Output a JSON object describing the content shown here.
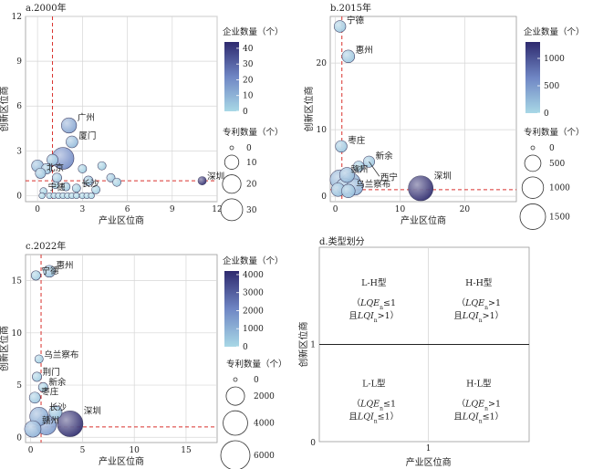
{
  "chart_data": [
    {
      "id": "a",
      "type": "scatter",
      "title": "a.2000年",
      "xlabel": "产业区位商",
      "ylabel": "创新区位商",
      "xlim": [
        -0.8,
        12
      ],
      "ylim": [
        -0.4,
        12
      ],
      "xticks": [
        0,
        3,
        6,
        9,
        12
      ],
      "yticks": [
        0,
        3,
        6,
        9,
        12
      ],
      "grid": true,
      "ref_x": 1,
      "ref_y": 1,
      "size_legend": {
        "title": "专利数量（个）",
        "values": [
          0,
          10,
          20,
          30
        ]
      },
      "color_legend": {
        "title": "企业数量（个）",
        "ticks": [
          0,
          10,
          20,
          30,
          40
        ],
        "max": 44
      },
      "points": [
        {
          "x": 1.7,
          "y": 2.5,
          "size": 30,
          "color": 20,
          "label": ""
        },
        {
          "x": 2.1,
          "y": 4.7,
          "size": 12,
          "color": 14,
          "label": "广州"
        },
        {
          "x": 2.3,
          "y": 3.6,
          "size": 6,
          "color": 8,
          "label": "厦门"
        },
        {
          "x": 1.0,
          "y": 2.4,
          "size": 5,
          "color": 6,
          "label": ""
        },
        {
          "x": 0.6,
          "y": 1.8,
          "size": 4,
          "color": 5,
          "label": ""
        },
        {
          "x": 0.0,
          "y": 2.0,
          "size": 6,
          "color": 8,
          "label": ""
        },
        {
          "x": 0.2,
          "y": 1.5,
          "size": 4,
          "color": 5,
          "label": "北京"
        },
        {
          "x": 1.3,
          "y": 1.2,
          "size": 3,
          "color": 4,
          "label": ""
        },
        {
          "x": 3.4,
          "y": 1.0,
          "size": 3,
          "color": 5,
          "label": ""
        },
        {
          "x": 3.9,
          "y": 0.4,
          "size": 2,
          "color": 3,
          "label": ""
        },
        {
          "x": 4.9,
          "y": 1.2,
          "size": 2,
          "color": 4,
          "label": ""
        },
        {
          "x": 5.3,
          "y": 0.9,
          "size": 2,
          "color": 3,
          "label": ""
        },
        {
          "x": 3.0,
          "y": 1.8,
          "size": 2,
          "color": 3,
          "label": ""
        },
        {
          "x": 4.3,
          "y": 2.0,
          "size": 2,
          "color": 3,
          "label": ""
        },
        {
          "x": 1.9,
          "y": 0.6,
          "size": 2,
          "color": 4,
          "label": ""
        },
        {
          "x": 2.6,
          "y": 0.5,
          "size": 2,
          "color": 3,
          "label": "长沙"
        },
        {
          "x": 1.2,
          "y": 0.7,
          "size": 1,
          "color": 2,
          "label": ""
        },
        {
          "x": 0.4,
          "y": 0.3,
          "size": 1,
          "color": 2,
          "label": "宁德"
        },
        {
          "x": 0.8,
          "y": 0.0,
          "size": 0.5,
          "color": 1,
          "label": ""
        },
        {
          "x": 1.1,
          "y": 0.0,
          "size": 0.5,
          "color": 1,
          "label": ""
        },
        {
          "x": 1.4,
          "y": 0.0,
          "size": 0.5,
          "color": 1,
          "label": ""
        },
        {
          "x": 1.7,
          "y": 0.0,
          "size": 0.5,
          "color": 1,
          "label": ""
        },
        {
          "x": 2.0,
          "y": 0.0,
          "size": 0.5,
          "color": 1,
          "label": ""
        },
        {
          "x": 2.3,
          "y": 0.0,
          "size": 0.5,
          "color": 1,
          "label": ""
        },
        {
          "x": 2.6,
          "y": 0.0,
          "size": 0.5,
          "color": 1,
          "label": ""
        },
        {
          "x": 3.0,
          "y": 0.0,
          "size": 0.5,
          "color": 1,
          "label": ""
        },
        {
          "x": 3.3,
          "y": 0.0,
          "size": 0.5,
          "color": 1,
          "label": ""
        },
        {
          "x": 3.6,
          "y": 0.0,
          "size": 0.5,
          "color": 1,
          "label": ""
        },
        {
          "x": 0.3,
          "y": 0.0,
          "size": 0.5,
          "color": 1,
          "label": ""
        },
        {
          "x": 11.0,
          "y": 1.0,
          "size": 2,
          "color": 44,
          "label": "深圳"
        }
      ]
    },
    {
      "id": "b",
      "type": "scatter",
      "title": "b.2015年",
      "xlabel": "产业区位商",
      "ylabel": "创新区位商",
      "xlim": [
        -0.8,
        28
      ],
      "ylim": [
        -0.8,
        27
      ],
      "xticks": [
        0,
        10,
        20
      ],
      "yticks": [
        0,
        10,
        20
      ],
      "grid": true,
      "ref_x": 1,
      "ref_y": 1,
      "size_legend": {
        "title": "专利数量（个）",
        "values": [
          0,
          500,
          1000,
          1500
        ]
      },
      "color_legend": {
        "title": "企业数量（个）",
        "ticks": [
          0,
          500,
          1000
        ],
        "max": 1300
      },
      "points": [
        {
          "x": 0.7,
          "y": 25.5,
          "size": 200,
          "color": 120,
          "label": "宁德"
        },
        {
          "x": 2.0,
          "y": 21.0,
          "size": 250,
          "color": 150,
          "label": "惠州"
        },
        {
          "x": 0.9,
          "y": 7.5,
          "size": 200,
          "color": 150,
          "label": "枣庄"
        },
        {
          "x": 3.6,
          "y": 4.5,
          "size": 150,
          "color": 100,
          "label": ""
        },
        {
          "x": 5.2,
          "y": 5.2,
          "size": 180,
          "color": 150,
          "label": "新余"
        },
        {
          "x": 1.8,
          "y": 3.2,
          "size": 400,
          "color": 250,
          "label": ""
        },
        {
          "x": 0.7,
          "y": 2.5,
          "size": 800,
          "color": 300,
          "label": "赣州"
        },
        {
          "x": 2.4,
          "y": 2.1,
          "size": 700,
          "color": 300,
          "label": ""
        },
        {
          "x": 1.4,
          "y": 1.5,
          "size": 500,
          "color": 250,
          "label": ""
        },
        {
          "x": 3.0,
          "y": 1.4,
          "size": 500,
          "color": 300,
          "label": ""
        },
        {
          "x": 0.4,
          "y": 1.0,
          "size": 300,
          "color": 200,
          "label": ""
        },
        {
          "x": 2.0,
          "y": 0.8,
          "size": 300,
          "color": 200,
          "label": "乌兰察布"
        },
        {
          "x": 13.2,
          "y": 1.2,
          "size": 1400,
          "color": 1300,
          "label": "深圳"
        }
      ],
      "annotations": [
        {
          "text": "西宁",
          "from": [
            5.2,
            5.2
          ],
          "to": [
            6.8,
            3.0
          ]
        },
        {
          "text": "",
          "from": [
            3.6,
            4.5
          ],
          "to": [
            4.8,
            4.6
          ]
        }
      ]
    },
    {
      "id": "c",
      "type": "scatter",
      "title": "c.2022年",
      "xlabel": "产业区位商",
      "ylabel": "创新区位商",
      "xlim": [
        -0.5,
        18
      ],
      "ylim": [
        -0.5,
        17.5
      ],
      "xticks": [
        0,
        5,
        10,
        15
      ],
      "yticks": [
        0,
        5,
        10,
        15
      ],
      "grid": true,
      "ref_x": 1,
      "ref_y": 1,
      "size_legend": {
        "title": "专利数量（个）",
        "values": [
          0,
          2000,
          4000,
          6000
        ]
      },
      "color_legend": {
        "title": "企业数量（个）",
        "ticks": [
          0,
          1000,
          2000,
          3000,
          4000
        ],
        "max": 4200
      },
      "points": [
        {
          "x": 1.8,
          "y": 15.9,
          "size": 600,
          "color": 500,
          "label": "惠州"
        },
        {
          "x": 0.5,
          "y": 15.5,
          "size": 300,
          "color": 300,
          "label": "宁德"
        },
        {
          "x": 0.8,
          "y": 7.5,
          "size": 200,
          "color": 250,
          "label": "乌兰察布"
        },
        {
          "x": 0.6,
          "y": 5.8,
          "size": 300,
          "color": 300,
          "label": "荆门"
        },
        {
          "x": 1.2,
          "y": 4.8,
          "size": 300,
          "color": 300,
          "label": "新余"
        },
        {
          "x": 0.4,
          "y": 3.8,
          "size": 500,
          "color": 400,
          "label": "枣庄"
        },
        {
          "x": 0.8,
          "y": 2.0,
          "size": 2000,
          "color": 1200,
          "label": "长沙"
        },
        {
          "x": 1.5,
          "y": 1.2,
          "size": 2500,
          "color": 1500,
          "label": ""
        },
        {
          "x": 0.2,
          "y": 0.8,
          "size": 1500,
          "color": 1000,
          "label": "赣州"
        },
        {
          "x": 2.4,
          "y": 2.4,
          "size": 800,
          "color": 600,
          "label": ""
        },
        {
          "x": 3.8,
          "y": 1.3,
          "size": 4500,
          "color": 4200,
          "label": "深圳"
        }
      ]
    },
    {
      "id": "d",
      "type": "quadrant",
      "title": "d.类型划分",
      "xlabel": "产业区位商",
      "ylabel": "创新区位商",
      "x_ref_label": "1",
      "y_ref_label": "1",
      "origin_label": "0",
      "quadrants": [
        {
          "pos": "top-left",
          "name": "L-H型",
          "cond1_op": "≤1",
          "cond2_op": ">1"
        },
        {
          "pos": "top-right",
          "name": "H-H型",
          "cond1_op": ">1",
          "cond2_op": ">1"
        },
        {
          "pos": "bottom-left",
          "name": "L-L型",
          "cond1_op": "≤1",
          "cond2_op": "≤1"
        },
        {
          "pos": "bottom-right",
          "name": "H-L型",
          "cond1_op": ">1",
          "cond2_op": "≤1"
        }
      ],
      "cond1_var": "LQE",
      "cond2_var": "LQI",
      "cond_sub": "n",
      "cond_and": "且"
    }
  ]
}
